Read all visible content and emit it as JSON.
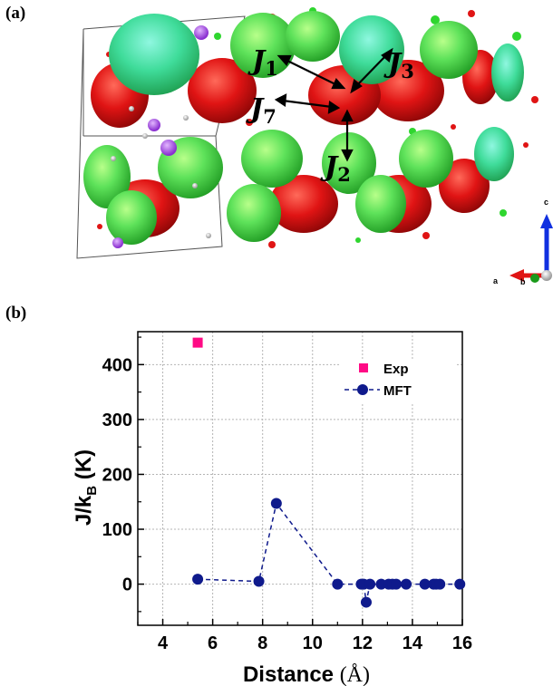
{
  "panels": {
    "a": "(a)",
    "b": "(b)"
  },
  "structure": {
    "exchange_labels": [
      {
        "symbol": "J",
        "sub": "1"
      },
      {
        "symbol": "J",
        "sub": "3"
      },
      {
        "symbol": "J",
        "sub": "7"
      },
      {
        "symbol": "J",
        "sub": "2"
      }
    ],
    "axes": {
      "c": "c",
      "a": "a",
      "b": "b"
    },
    "colors": {
      "spin_up": "#2fd62f",
      "spin_down": "#e01414",
      "cell": "#555555"
    }
  },
  "chart_data": {
    "type": "scatter",
    "xlabel": "Distance",
    "xlabel_unit": "(Å)",
    "ylabel": "J/k",
    "ylabel_sub": "B",
    "ylabel_unit": "(K)",
    "xlim": [
      3,
      16
    ],
    "ylim": [
      -75,
      460
    ],
    "xticks": [
      "4",
      "6",
      "8",
      "10",
      "12",
      "14",
      "16"
    ],
    "yticks": [
      "0",
      "100",
      "200",
      "300",
      "400"
    ],
    "xtick_values": [
      4,
      6,
      8,
      10,
      12,
      14,
      16
    ],
    "ytick_values": [
      0,
      100,
      200,
      300,
      400
    ],
    "grid": true,
    "legend_position": "top-right",
    "series": [
      {
        "name": "Exp",
        "marker": "square",
        "color": "#ff0a85",
        "line": false,
        "x": [
          5.4
        ],
        "y": [
          440
        ]
      },
      {
        "name": "MFT",
        "marker": "circle",
        "color": "#0f1a8c",
        "line": true,
        "line_style": "dashed",
        "x": [
          5.4,
          7.85,
          8.55,
          11.0,
          11.95,
          12.05,
          12.15,
          12.3,
          12.75,
          13.05,
          13.2,
          13.35,
          13.75,
          14.5,
          14.85,
          14.95,
          15.1,
          15.9
        ],
        "y": [
          9,
          5,
          147,
          0,
          0,
          0,
          -33,
          0,
          0,
          0,
          0,
          0,
          0,
          0,
          0,
          0,
          0,
          0
        ]
      }
    ]
  }
}
